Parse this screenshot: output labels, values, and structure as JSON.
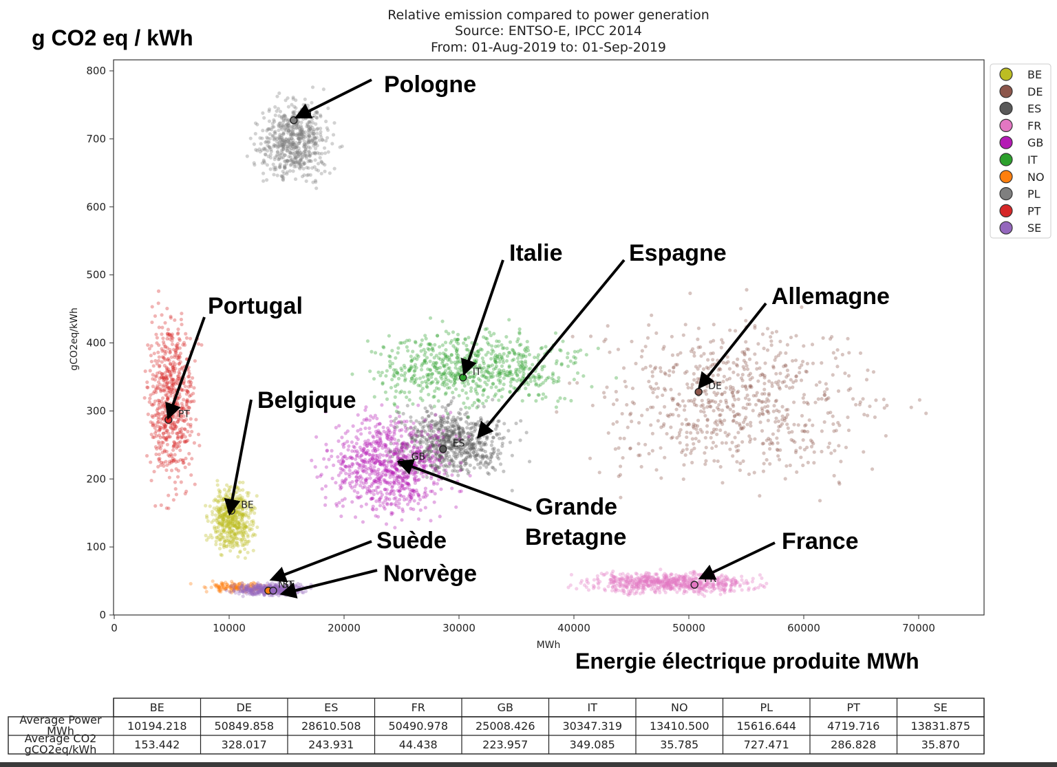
{
  "chart_data": {
    "type": "scatter",
    "title": "Relative emission compared to power generation",
    "subtitle_lines": [
      "Source: ENTSO-E, IPCC 2014",
      "From: 01-Aug-2019 to: 01-Sep-2019"
    ],
    "xlabel": "MWh",
    "ylabel": "gCO2eq/kWh",
    "overlay_ylabel": "g CO2 eq / kWh",
    "overlay_xlabel": "Energie électrique produite MWh",
    "xlim": [
      0,
      76000
    ],
    "ylim": [
      0,
      800
    ],
    "xticks": [
      "0",
      "10000",
      "20000",
      "30000",
      "40000",
      "50000",
      "60000",
      "70000"
    ],
    "yticks": [
      "0",
      "100",
      "200",
      "300",
      "400",
      "500",
      "600",
      "700",
      "800"
    ],
    "legend_position": "right",
    "series": [
      {
        "name": "BE",
        "color": "#bcbd22",
        "mean_x": 10194.218,
        "mean_y": 153.442,
        "x_range": [
          7500,
          13000
        ],
        "y_range": [
          70,
          210
        ]
      },
      {
        "name": "DE",
        "color": "#8c564b",
        "mean_x": 50849.858,
        "mean_y": 328.017,
        "x_range": [
          36000,
          72500
        ],
        "y_range": [
          140,
          490
        ]
      },
      {
        "name": "ES",
        "color": "#595959",
        "mean_x": 28610.508,
        "mean_y": 243.931,
        "x_range": [
          22000,
          36500
        ],
        "y_range": [
          180,
          330
        ]
      },
      {
        "name": "FR",
        "color": "#e377c2",
        "mean_x": 50490.978,
        "mean_y": 44.438,
        "x_range": [
          38000,
          59000
        ],
        "y_range": [
          25,
          70
        ]
      },
      {
        "name": "GB",
        "color": "#b41ab4",
        "mean_x": 25008.426,
        "mean_y": 223.957,
        "x_range": [
          16000,
          32000
        ],
        "y_range": [
          110,
          330
        ]
      },
      {
        "name": "IT",
        "color": "#2ca02c",
        "mean_x": 30347.319,
        "mean_y": 349.085,
        "x_range": [
          18000,
          45000
        ],
        "y_range": [
          280,
          445
        ]
      },
      {
        "name": "NO",
        "color": "#ff7f0e",
        "mean_x": 13410.5,
        "mean_y": 35.785,
        "x_range": [
          6500,
          14500
        ],
        "y_range": [
          30,
          52
        ]
      },
      {
        "name": "PL",
        "color": "#7f7f7f",
        "mean_x": 15616.644,
        "mean_y": 727.471,
        "x_range": [
          11000,
          20500
        ],
        "y_range": [
          615,
          780
        ]
      },
      {
        "name": "PT",
        "color": "#d62728",
        "mean_x": 4719.716,
        "mean_y": 286.828,
        "x_range": [
          2000,
          8000
        ],
        "y_range": [
          130,
          500
        ]
      },
      {
        "name": "SE",
        "color": "#9467bd",
        "mean_x": 13831.875,
        "mean_y": 35.87,
        "x_range": [
          9000,
          18000
        ],
        "y_range": [
          25,
          50
        ]
      }
    ],
    "annotations": [
      {
        "text": "Pologne",
        "series": "PL"
      },
      {
        "text": "Italie",
        "series": "IT"
      },
      {
        "text": "Espagne",
        "series": "ES"
      },
      {
        "text": "Allemagne",
        "series": "DE"
      },
      {
        "text": "Portugal",
        "series": "PT"
      },
      {
        "text": "Belgique",
        "series": "BE"
      },
      {
        "text": "Grande",
        "series": "GB"
      },
      {
        "text": "Bretagne",
        "series": "GB"
      },
      {
        "text": "Suède",
        "series": "SE"
      },
      {
        "text": "Norvège",
        "series": "NO"
      },
      {
        "text": "France",
        "series": "FR"
      }
    ],
    "table": {
      "columns": [
        "BE",
        "DE",
        "ES",
        "FR",
        "GB",
        "IT",
        "NO",
        "PL",
        "PT",
        "SE"
      ],
      "rows": [
        {
          "label": "Average Power MWh",
          "values": [
            "10194.218",
            "50849.858",
            "28610.508",
            "50490.978",
            "25008.426",
            "30347.319",
            "13410.500",
            "15616.644",
            "4719.716",
            "13831.875"
          ]
        },
        {
          "label": "Average CO2 gCO2eq/kWh",
          "values": [
            "153.442",
            "328.017",
            "243.931",
            "44.438",
            "223.957",
            "349.085",
            "35.785",
            "727.471",
            "286.828",
            "35.870"
          ]
        }
      ]
    }
  }
}
